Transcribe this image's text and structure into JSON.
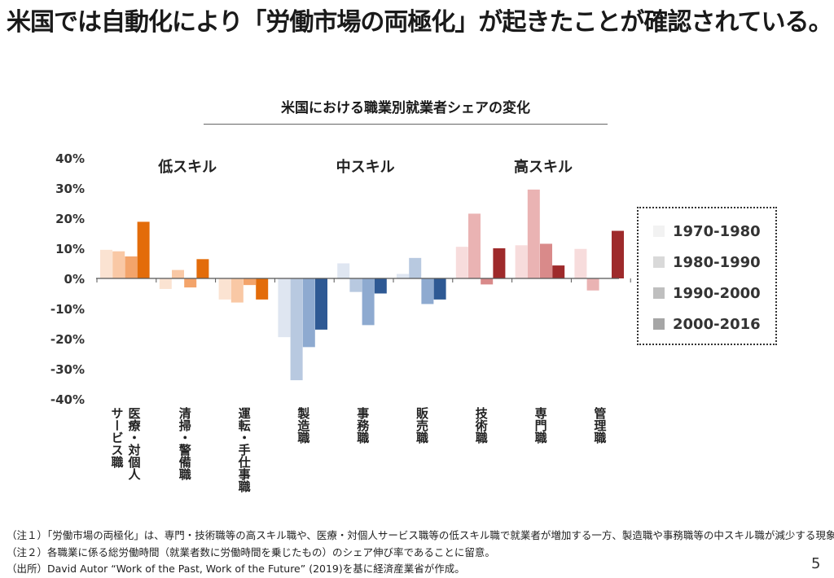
{
  "page": {
    "headline": "米国では自動化により「労働市場の両極化」が起きたことが確認されている。",
    "page_number": "5",
    "notes": [
      "（注１）「労働市場の両極化」は、専門・技術職等の高スキル職や、医療・対個人サービス職等の低スキル職で就業者が増加する一方、製造職や事務職等の中スキル職が減少する現象。",
      "（注２）各職業に係る総労働時間（就業者数に労働時間を乗じたもの）のシェア伸び率であることに留意。",
      "（出所）David Autor “Work of the Past, Work of the Future” (2019)を基に経済産業省が作成。"
    ]
  },
  "chart_data": {
    "type": "bar",
    "title": "米国における職業別就業者シェアの変化",
    "ylim": [
      -40,
      40
    ],
    "yticks": [
      {
        "value": 40,
        "label": "40%"
      },
      {
        "value": 30,
        "label": "30%"
      },
      {
        "value": 20,
        "label": "20%"
      },
      {
        "value": 10,
        "label": "10%"
      },
      {
        "value": 0,
        "label": "0%"
      },
      {
        "value": -10,
        "label": "-10%"
      },
      {
        "value": -20,
        "label": "-20%"
      },
      {
        "value": -30,
        "label": "-30%"
      },
      {
        "value": -40,
        "label": "-40%"
      }
    ],
    "legend_position": "right",
    "series": [
      {
        "name": "1970-1980",
        "legend_color": "#f2f2f2"
      },
      {
        "name": "1980-1990",
        "legend_color": "#d9d9d9"
      },
      {
        "name": "1990-2000",
        "legend_color": "#bfbfbf"
      },
      {
        "name": "2000-2016",
        "legend_color": "#a6a6a6"
      }
    ],
    "groups": [
      {
        "label": "低スキル",
        "first_category": 0,
        "last_category": 2
      },
      {
        "label": "中スキル",
        "first_category": 3,
        "last_category": 5
      },
      {
        "label": "高スキル",
        "first_category": 6,
        "last_category": 8
      }
    ],
    "categories": [
      {
        "label_lines": [
          "医療・対個人",
          "サービス職"
        ],
        "values": [
          9.5,
          9,
          7.3,
          18.8
        ],
        "colors": [
          "#fbe3d2",
          "#f9c8a5",
          "#f3a46b",
          "#e36c0a"
        ]
      },
      {
        "label_lines": [
          "清掃・警備職"
        ],
        "values": [
          -3.5,
          2.8,
          -3,
          6.4
        ],
        "colors": [
          "#fbe3d2",
          "#f9c8a5",
          "#f3a46b",
          "#e36c0a"
        ]
      },
      {
        "label_lines": [
          "運転・手仕事職"
        ],
        "values": [
          -7,
          -8,
          -2.2,
          -7
        ],
        "colors": [
          "#fbe3d2",
          "#f9c8a5",
          "#f3a46b",
          "#e36c0a"
        ]
      },
      {
        "label_lines": [
          "製造職"
        ],
        "values": [
          -19.5,
          -33.8,
          -22.8,
          -17
        ],
        "colors": [
          "#dfe6f1",
          "#b8c9e0",
          "#8eaad0",
          "#2e5994"
        ]
      },
      {
        "label_lines": [
          "事務職"
        ],
        "values": [
          5,
          -4.5,
          -15.5,
          -5
        ],
        "colors": [
          "#dfe6f1",
          "#b8c9e0",
          "#8eaad0",
          "#2e5994"
        ]
      },
      {
        "label_lines": [
          "販売職"
        ],
        "values": [
          1.5,
          6.8,
          -8.5,
          -7
        ],
        "colors": [
          "#dfe6f1",
          "#b8c9e0",
          "#8eaad0",
          "#2e5994"
        ]
      },
      {
        "label_lines": [
          "技術職"
        ],
        "values": [
          10.5,
          21.5,
          -2,
          10
        ],
        "colors": [
          "#f7dcdc",
          "#eab3b3",
          "#d98a8a",
          "#9e2a2b"
        ]
      },
      {
        "label_lines": [
          "専門職"
        ],
        "values": [
          11,
          29.5,
          11.5,
          4.3
        ],
        "colors": [
          "#f7dcdc",
          "#eab3b3",
          "#d98a8a",
          "#9e2a2b"
        ]
      },
      {
        "label_lines": [
          "管理職"
        ],
        "values": [
          9.8,
          -4,
          null,
          15.8
        ],
        "colors": [
          "#f7dcdc",
          "#eab3b3",
          "#d98a8a",
          "#9e2a2b"
        ]
      }
    ]
  }
}
